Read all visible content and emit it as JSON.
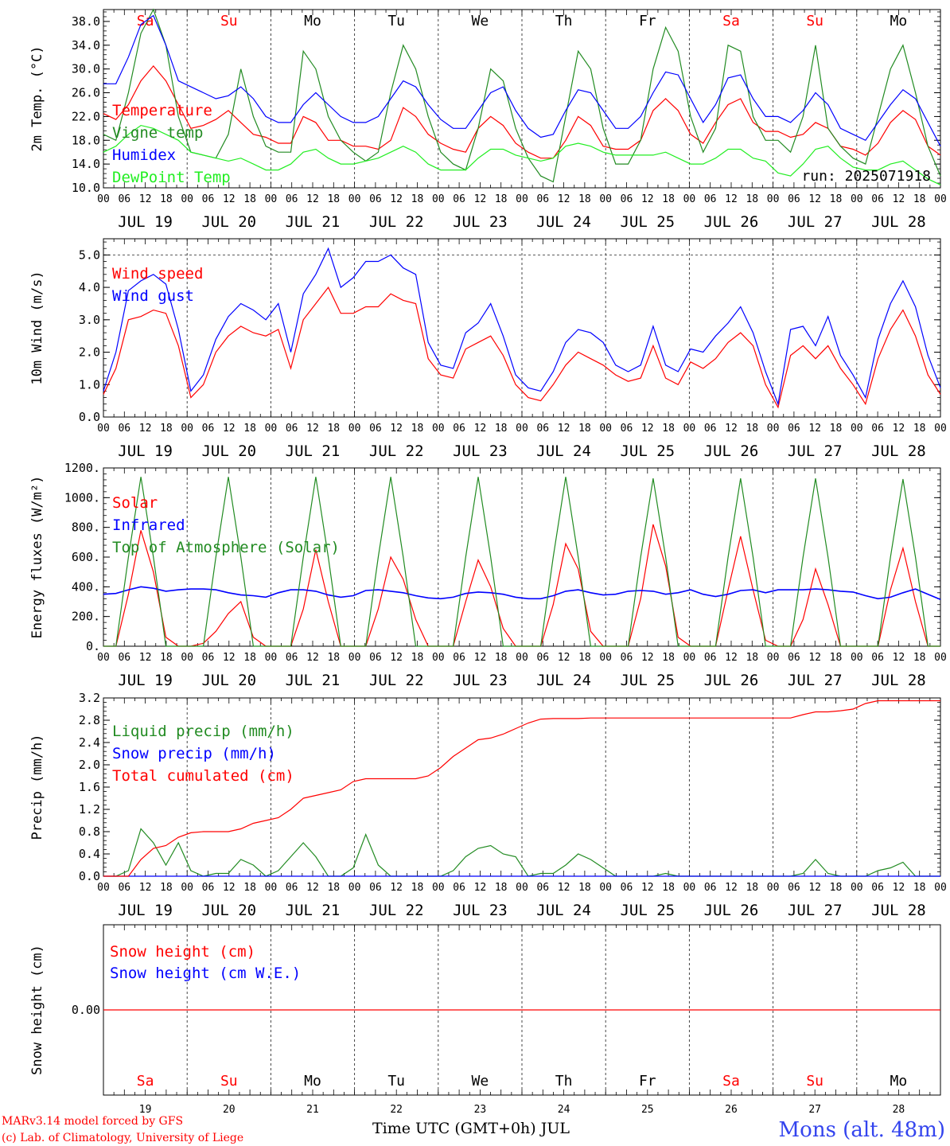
{
  "credits": {
    "line1": "MARv3.14 model forced by GFS",
    "line2": "(c) Lab. of Climatology, University of Liege"
  },
  "station": "Mons (alt. 48m)",
  "run_label": "run: 2025071918",
  "xaxis": {
    "hour_ticks": [
      "00",
      "06",
      "12",
      "18"
    ],
    "end_tick": "00",
    "dates": [
      "JUL 19",
      "JUL 20",
      "JUL 21",
      "JUL 22",
      "JUL 23",
      "JUL 24",
      "JUL 25",
      "JUL 26",
      "JUL 27",
      "JUL 28"
    ],
    "days": [
      "Sa",
      "Su",
      "Mo",
      "Tu",
      "We",
      "Th",
      "Fr",
      "Sa",
      "Su",
      "Mo"
    ],
    "day_numbers": [
      "19",
      "20",
      "21",
      "22",
      "23",
      "24",
      "25",
      "26",
      "27",
      "28"
    ],
    "weekend_flags": [
      true,
      true,
      false,
      false,
      false,
      false,
      false,
      true,
      true,
      false
    ],
    "bottom_label": "Time UTC (GMT+0h) JUL"
  },
  "colors": {
    "red": "#ff0000",
    "green": "#228b22",
    "lightgreen": "#22ee22",
    "blue": "#0000ff",
    "navy": "#0000cc",
    "title_blue": "#3344ee"
  },
  "chart_data": [
    {
      "type": "line",
      "ylabel": "2m Temp. (°C)",
      "ylim": [
        10,
        40
      ],
      "yticks": [
        "10.0",
        "14.0",
        "18.0",
        "22.0",
        "26.0",
        "30.0",
        "34.0",
        "38.0"
      ],
      "ytick_values": [
        10,
        14,
        18,
        22,
        26,
        30,
        34,
        38
      ],
      "x_unit": "hours since JUL 19 00 UTC, 6-hourly",
      "series": [
        {
          "name": "Temperature",
          "color": "#ff0000",
          "values": [
            22.5,
            21.5,
            24,
            28,
            30.5,
            28,
            24,
            20,
            20.5,
            21.5,
            23,
            21,
            19,
            18.5,
            17.5,
            17.5,
            22,
            21,
            18,
            18,
            17,
            17,
            16.5,
            18,
            23.5,
            22,
            19,
            17.5,
            16.5,
            16,
            20,
            22,
            20.5,
            17.5,
            16,
            15,
            15,
            18,
            22,
            20.5,
            17,
            16.5,
            16.5,
            18,
            23,
            25,
            23,
            19,
            17.5,
            21,
            24,
            25,
            21,
            19.5,
            19.5,
            18.5,
            19,
            21,
            20,
            17,
            16.5,
            15.5,
            17.5,
            21,
            23,
            21.5,
            17,
            15.5
          ]
        },
        {
          "name": "Vigne temp",
          "color": "#228b22",
          "values": [
            19,
            18,
            26,
            36,
            40,
            34,
            22,
            16,
            15.5,
            15,
            19,
            30,
            22,
            17,
            16,
            16,
            33,
            30,
            22,
            18,
            16,
            14.5,
            16,
            26,
            34,
            30,
            22,
            16,
            14,
            13,
            20,
            30,
            28,
            20,
            15,
            12,
            11,
            22,
            33,
            30,
            20,
            14,
            14,
            18,
            30,
            37,
            33,
            22,
            16,
            20,
            34,
            33,
            22,
            18,
            18,
            16,
            22,
            34,
            20,
            17,
            15,
            14,
            22,
            30,
            34,
            26,
            17,
            12
          ]
        },
        {
          "name": "Humidex",
          "color": "#0000ff",
          "values": [
            27.5,
            27.5,
            32,
            37.5,
            39,
            34,
            28,
            27,
            26,
            25,
            25.5,
            27,
            25,
            22,
            21,
            21,
            24,
            26,
            24,
            22,
            21,
            21,
            22,
            25,
            28,
            27,
            24,
            21.5,
            20,
            20,
            23,
            26,
            27,
            23,
            20,
            18.5,
            19,
            23,
            26.5,
            26,
            23,
            20,
            20,
            22,
            26,
            29.5,
            29,
            25,
            21,
            24,
            28.5,
            29,
            25,
            22,
            22,
            21,
            23,
            26,
            24,
            20,
            19,
            18,
            21,
            24,
            26.5,
            25,
            21,
            17
          ]
        },
        {
          "name": "DewPoint Temp",
          "color": "#22ee22",
          "values": [
            16,
            17,
            19,
            20.5,
            20,
            19,
            18,
            16,
            15.5,
            15,
            14.5,
            15,
            14,
            13,
            13,
            14,
            16,
            16.5,
            15,
            14,
            14,
            14.5,
            15,
            16,
            17,
            16,
            14,
            13,
            13,
            13,
            15,
            16.5,
            16.5,
            15.5,
            15,
            14.5,
            15,
            17,
            17.5,
            17,
            16,
            15.5,
            15.5,
            15.5,
            15.5,
            16,
            15,
            14,
            14,
            15,
            16.5,
            16.5,
            15,
            14.5,
            12.5,
            12,
            14,
            16.5,
            17,
            15,
            13.5,
            13,
            13,
            14,
            14.5,
            13,
            11.5,
            10.5
          ]
        }
      ]
    },
    {
      "type": "line",
      "ylabel": "10m Wind (m/s)",
      "ylim": [
        0,
        5.5
      ],
      "yticks": [
        "0.0",
        "1.0",
        "2.0",
        "3.0",
        "4.0",
        "5.0"
      ],
      "ytick_values": [
        0,
        1,
        2,
        3,
        4,
        5
      ],
      "reference_line": 5.0,
      "x_unit": "hours since JUL 19 00 UTC, 6-hourly",
      "series": [
        {
          "name": "Wind speed",
          "color": "#ff0000",
          "values": [
            0.7,
            1.5,
            3.0,
            3.1,
            3.3,
            3.2,
            2.2,
            0.6,
            1.0,
            2.0,
            2.5,
            2.8,
            2.6,
            2.5,
            2.7,
            1.5,
            3.0,
            3.5,
            4.0,
            3.2,
            3.2,
            3.4,
            3.4,
            3.8,
            3.6,
            3.5,
            1.8,
            1.3,
            1.2,
            2.1,
            2.3,
            2.5,
            1.9,
            1.0,
            0.6,
            0.5,
            1.0,
            1.6,
            2.0,
            1.8,
            1.6,
            1.3,
            1.1,
            1.2,
            2.2,
            1.2,
            1.0,
            1.7,
            1.5,
            1.8,
            2.3,
            2.6,
            2.2,
            1.0,
            0.3,
            1.9,
            2.2,
            1.8,
            2.2,
            1.5,
            1.0,
            0.4,
            1.8,
            2.7,
            3.3,
            2.5,
            1.3,
            0.7
          ]
        },
        {
          "name": "Wind gust",
          "color": "#0000ff",
          "values": [
            0.8,
            2.0,
            3.9,
            4.2,
            4.4,
            4.1,
            2.7,
            0.8,
            1.3,
            2.4,
            3.1,
            3.5,
            3.3,
            3.0,
            3.5,
            2.0,
            3.8,
            4.4,
            5.2,
            4.0,
            4.3,
            4.8,
            4.8,
            5.0,
            4.6,
            4.4,
            2.3,
            1.6,
            1.5,
            2.6,
            2.9,
            3.5,
            2.5,
            1.3,
            0.9,
            0.8,
            1.4,
            2.3,
            2.7,
            2.6,
            2.3,
            1.6,
            1.4,
            1.6,
            2.8,
            1.6,
            1.4,
            2.1,
            2.0,
            2.5,
            2.9,
            3.4,
            2.6,
            1.4,
            0.4,
            2.7,
            2.8,
            2.2,
            3.1,
            1.9,
            1.3,
            0.6,
            2.4,
            3.5,
            4.2,
            3.4,
            1.9,
            0.9
          ]
        }
      ]
    },
    {
      "type": "line",
      "ylabel": "Energy fluxes (W/m²)",
      "ylim": [
        0,
        1200
      ],
      "yticks": [
        "0.",
        "200.",
        "400.",
        "600.",
        "800.",
        "1000.",
        "1200."
      ],
      "ytick_values": [
        0,
        200,
        400,
        600,
        800,
        1000,
        1200
      ],
      "x_unit": "hours since JUL 19 00 UTC, 6-hourly",
      "series": [
        {
          "name": "Solar",
          "color": "#ff0000",
          "values": [
            0,
            0,
            350,
            780,
            500,
            60,
            0,
            0,
            20,
            100,
            220,
            300,
            60,
            0,
            0,
            0,
            250,
            650,
            300,
            0,
            0,
            0,
            250,
            600,
            450,
            180,
            0,
            0,
            0,
            300,
            580,
            400,
            120,
            0,
            0,
            0,
            280,
            690,
            520,
            100,
            0,
            0,
            0,
            320,
            820,
            540,
            60,
            0,
            0,
            0,
            380,
            740,
            380,
            40,
            0,
            0,
            180,
            520,
            280,
            0,
            0,
            0,
            0,
            380,
            660,
            300,
            0,
            0
          ]
        },
        {
          "name": "Infrared",
          "color": "#0000ff",
          "values": [
            350,
            355,
            380,
            400,
            390,
            370,
            380,
            385,
            385,
            380,
            360,
            345,
            340,
            330,
            360,
            380,
            380,
            370,
            345,
            330,
            340,
            375,
            380,
            370,
            360,
            340,
            325,
            320,
            330,
            355,
            365,
            360,
            350,
            330,
            320,
            320,
            340,
            370,
            380,
            360,
            345,
            350,
            370,
            375,
            370,
            350,
            360,
            380,
            350,
            335,
            350,
            375,
            380,
            360,
            380,
            380,
            380,
            385,
            380,
            370,
            365,
            340,
            320,
            330,
            360,
            385,
            350,
            315
          ]
        },
        {
          "name": "Top of Atmosphere (Solar)",
          "color": "#228b22",
          "values": [
            0,
            0,
            600,
            1140,
            600,
            0,
            0,
            0,
            0,
            600,
            1140,
            600,
            0,
            0,
            0,
            0,
            600,
            1140,
            600,
            0,
            0,
            0,
            600,
            1140,
            600,
            0,
            0,
            0,
            0,
            600,
            1140,
            600,
            0,
            0,
            0,
            0,
            600,
            1140,
            600,
            0,
            0,
            0,
            0,
            600,
            1130,
            600,
            0,
            0,
            0,
            0,
            600,
            1130,
            600,
            0,
            0,
            0,
            600,
            1130,
            600,
            0,
            0,
            0,
            0,
            600,
            1125,
            600,
            0,
            0
          ]
        }
      ]
    },
    {
      "type": "line",
      "ylabel": "Precip (mm/h)",
      "ylim": [
        0,
        3.2
      ],
      "yticks": [
        "0.0",
        "0.4",
        "0.8",
        "1.2",
        "1.6",
        "2.0",
        "2.4",
        "2.8",
        "3.2"
      ],
      "ytick_values": [
        0,
        0.4,
        0.8,
        1.2,
        1.6,
        2.0,
        2.4,
        2.8,
        3.2
      ],
      "x_unit": "hours since JUL 19 00 UTC, 6-hourly",
      "series": [
        {
          "name": "Liquid precip (mm/h)",
          "color": "#228b22",
          "values": [
            0,
            0,
            0.1,
            0.85,
            0.6,
            0.2,
            0.6,
            0.1,
            0,
            0.05,
            0.05,
            0.3,
            0.2,
            0,
            0.1,
            0.35,
            0.6,
            0.35,
            0,
            0,
            0.15,
            0.75,
            0.2,
            0,
            0,
            0,
            0,
            0,
            0.1,
            0.35,
            0.5,
            0.55,
            0.4,
            0.35,
            0,
            0.05,
            0.05,
            0.2,
            0.4,
            0.3,
            0.15,
            0,
            0,
            0,
            0,
            0.05,
            0,
            0,
            0,
            0,
            0,
            0,
            0,
            0,
            0,
            0,
            0.05,
            0.3,
            0.05,
            0,
            0,
            0,
            0.1,
            0.15,
            0.25,
            0,
            0,
            0
          ]
        },
        {
          "name": "Snow precip (mm/h)",
          "color": "#0000ff",
          "values": [
            0,
            0,
            0,
            0,
            0,
            0,
            0,
            0,
            0,
            0,
            0,
            0,
            0,
            0,
            0,
            0,
            0,
            0,
            0,
            0,
            0,
            0,
            0,
            0,
            0,
            0,
            0,
            0,
            0,
            0,
            0,
            0,
            0,
            0,
            0,
            0,
            0,
            0,
            0,
            0,
            0,
            0,
            0,
            0,
            0,
            0,
            0,
            0,
            0,
            0,
            0,
            0,
            0,
            0,
            0,
            0,
            0,
            0,
            0,
            0,
            0,
            0,
            0,
            0,
            0,
            0,
            0,
            0
          ]
        },
        {
          "name": "Total cumulated (cm)",
          "color": "#ff0000",
          "values": [
            0,
            0,
            0,
            0.3,
            0.5,
            0.55,
            0.7,
            0.78,
            0.8,
            0.8,
            0.8,
            0.85,
            0.95,
            1.0,
            1.05,
            1.2,
            1.4,
            1.45,
            1.5,
            1.55,
            1.7,
            1.75,
            1.75,
            1.75,
            1.75,
            1.75,
            1.8,
            1.95,
            2.15,
            2.3,
            2.45,
            2.48,
            2.55,
            2.65,
            2.75,
            2.82,
            2.83,
            2.83,
            2.83,
            2.84,
            2.84,
            2.84,
            2.84,
            2.84,
            2.84,
            2.84,
            2.84,
            2.84,
            2.84,
            2.84,
            2.84,
            2.84,
            2.84,
            2.84,
            2.84,
            2.84,
            2.9,
            2.95,
            2.95,
            2.97,
            3.0,
            3.1,
            3.15,
            3.15,
            3.15,
            3.15,
            3.15,
            3.15
          ]
        }
      ]
    },
    {
      "type": "line",
      "ylabel": "Snow height (cm)",
      "ylim": [
        -1,
        1
      ],
      "yticks": [
        "0.00"
      ],
      "ytick_values": [
        0
      ],
      "x_unit": "hours since JUL 19 00 UTC, 6-hourly",
      "series": [
        {
          "name": "Snow height (cm)",
          "color": "#ff0000",
          "values": [
            0,
            0
          ]
        },
        {
          "name": "Snow height (cm W.E.)",
          "color": "#0000ff",
          "values": []
        }
      ]
    }
  ]
}
